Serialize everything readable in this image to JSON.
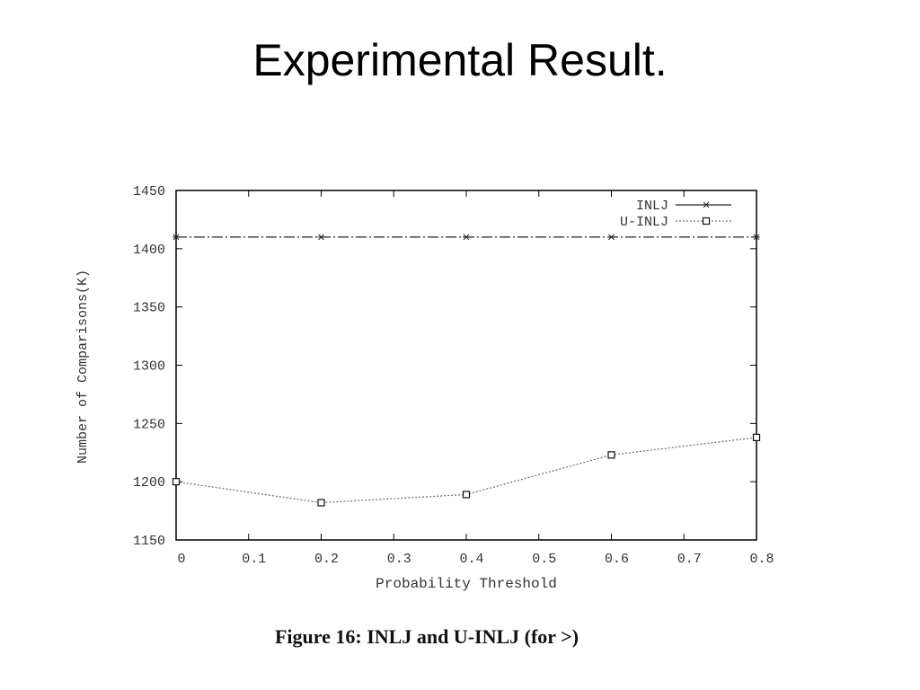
{
  "slide": {
    "title": "Experimental Result."
  },
  "caption": "Figure 16: INLJ and U-INLJ (for >)",
  "colors": {
    "axis": "#000000",
    "inlj_line": "#222222",
    "uinlj_line": "#777777",
    "text": "#333333"
  },
  "chart_data": {
    "type": "line",
    "title": "",
    "xlabel": "Probability Threshold",
    "ylabel": "Number of Comparisons(K)",
    "xlim": [
      0,
      0.8
    ],
    "ylim": [
      1150,
      1450
    ],
    "x_ticks": [
      "0",
      "0.1",
      "0.2",
      "0.3",
      "0.4",
      "0.5",
      "0.6",
      "0.7",
      "0.8"
    ],
    "y_ticks": [
      "1150",
      "1200",
      "1250",
      "1300",
      "1350",
      "1400",
      "1450"
    ],
    "grid": false,
    "legend_position": "top-right",
    "series": [
      {
        "name": "INLJ",
        "marker": "star",
        "line_style": "dash-dot",
        "x": [
          0,
          0.2,
          0.4,
          0.6,
          0.8
        ],
        "y": [
          1410,
          1410,
          1410,
          1410,
          1410
        ]
      },
      {
        "name": "U-INLJ",
        "marker": "square",
        "line_style": "dotted",
        "x": [
          0,
          0.2,
          0.4,
          0.6,
          0.8
        ],
        "y": [
          1200,
          1182,
          1189,
          1223,
          1238
        ]
      }
    ]
  }
}
